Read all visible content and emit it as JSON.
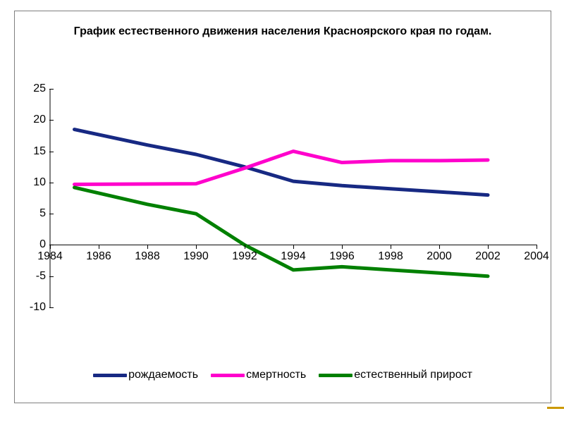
{
  "chart": {
    "type": "line",
    "title": "График естественного движения населения Красноярского края по годам.",
    "title_fontsize": 16,
    "title_fontweight": "bold",
    "frame_border_color": "#7f7f7f",
    "background_color": "#ffffff",
    "axis_color": "#000000",
    "tick_label_fontsize": 16,
    "line_width": 5,
    "xlim": [
      1984,
      2004
    ],
    "ylim": [
      -10,
      25
    ],
    "x_ticks": [
      1984,
      1986,
      1988,
      1990,
      1992,
      1994,
      1996,
      1998,
      2000,
      2002,
      2004
    ],
    "y_ticks": [
      -10,
      -5,
      0,
      5,
      10,
      15,
      20,
      25
    ],
    "series": [
      {
        "key": "birth",
        "label": "рождаемость",
        "color": "#172983",
        "x": [
          1985,
          1988,
          1990,
          1992,
          1994,
          1996,
          1998,
          2000,
          2002
        ],
        "y": [
          18.5,
          16.0,
          14.5,
          12.5,
          10.2,
          9.5,
          9.0,
          8.5,
          8.0
        ]
      },
      {
        "key": "death",
        "label": "смертность",
        "color": "#ff00cc",
        "x": [
          1985,
          1990,
          1992,
          1994,
          1996,
          1998,
          2000,
          2002
        ],
        "y": [
          9.7,
          9.8,
          12.3,
          15.0,
          13.2,
          13.5,
          13.5,
          13.6
        ]
      },
      {
        "key": "growth",
        "label": "естественный прирост",
        "color": "#008000",
        "x": [
          1985,
          1988,
          1990,
          1992,
          1994,
          1996,
          1998,
          2000,
          2002
        ],
        "y": [
          9.2,
          6.5,
          5.0,
          0.0,
          -4.0,
          -3.5,
          -4.0,
          -4.5,
          -5.0
        ]
      }
    ],
    "legend": {
      "swatch_width": 48,
      "swatch_height": 5
    }
  }
}
